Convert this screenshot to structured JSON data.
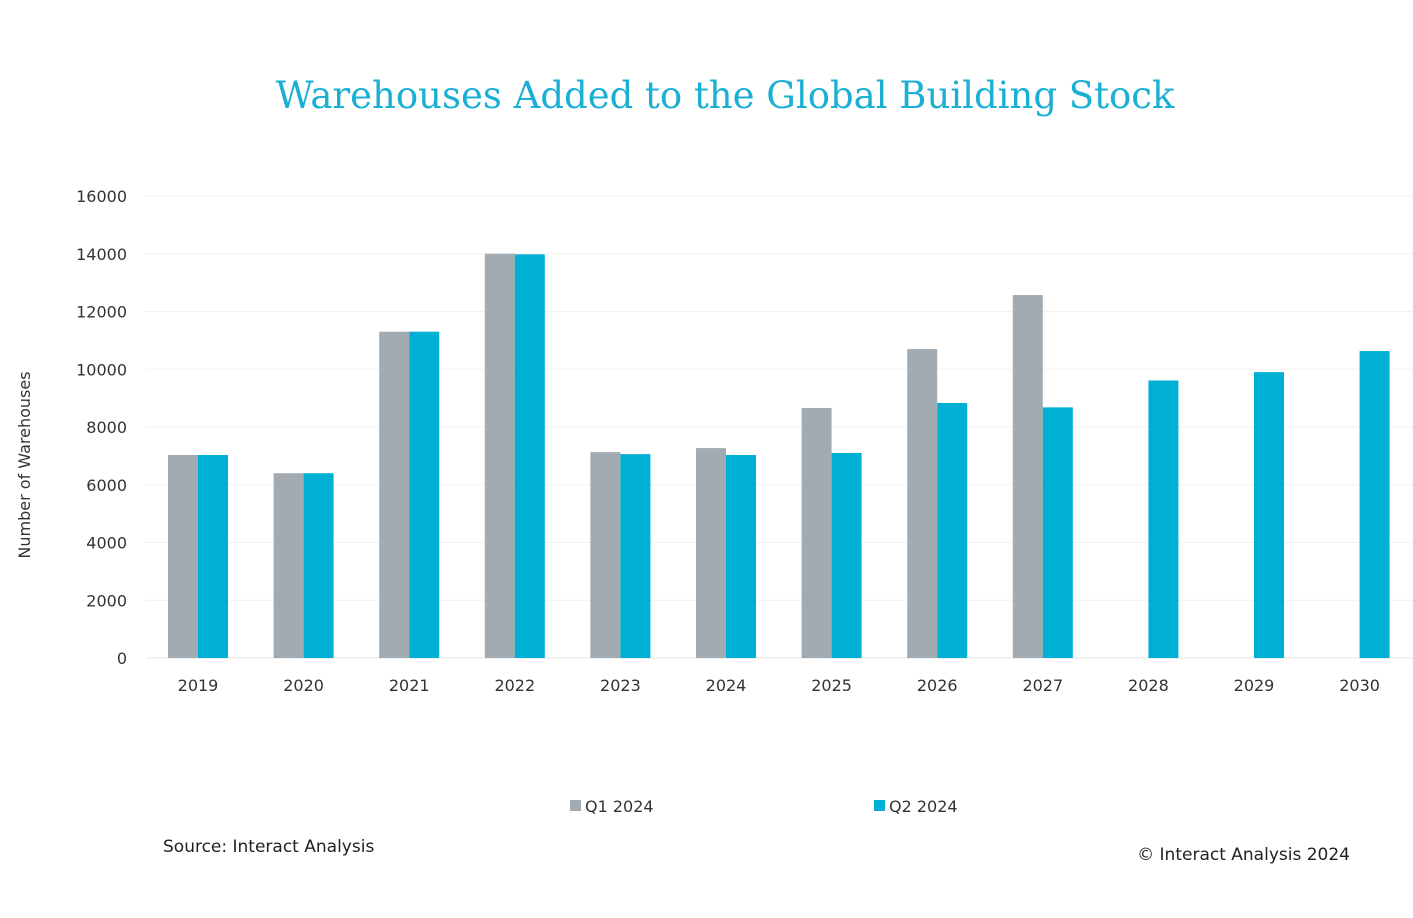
{
  "chart_data": {
    "type": "bar",
    "title": "Warehouses Added to the Global Building Stock",
    "xlabel": "",
    "ylabel": "Number of Warehouses",
    "ylim": [
      0,
      16000
    ],
    "yticks": [
      "0",
      "2000",
      "4000",
      "6000",
      "8000",
      "10000",
      "12000",
      "14000",
      "16000"
    ],
    "grid": true,
    "legend_position": "bottom",
    "categories": [
      "2019",
      "2020",
      "2021",
      "2022",
      "2023",
      "2024",
      "2025",
      "2026",
      "2027",
      "2028",
      "2029",
      "2030"
    ],
    "series": [
      {
        "name": "Q1 2024",
        "color": "#a2abb1",
        "values": [
          7030,
          6400,
          11300,
          14000,
          7130,
          7270,
          8660,
          10700,
          12570,
          null,
          null,
          null
        ]
      },
      {
        "name": "Q2 2024",
        "color": "#00b0d4",
        "values": [
          7030,
          6400,
          11300,
          13980,
          7060,
          7030,
          7100,
          8830,
          8680,
          9610,
          9900,
          10630
        ]
      }
    ]
  },
  "footer": {
    "source": "Source: Interact Analysis",
    "copyright": "© Interact Analysis 2024"
  }
}
